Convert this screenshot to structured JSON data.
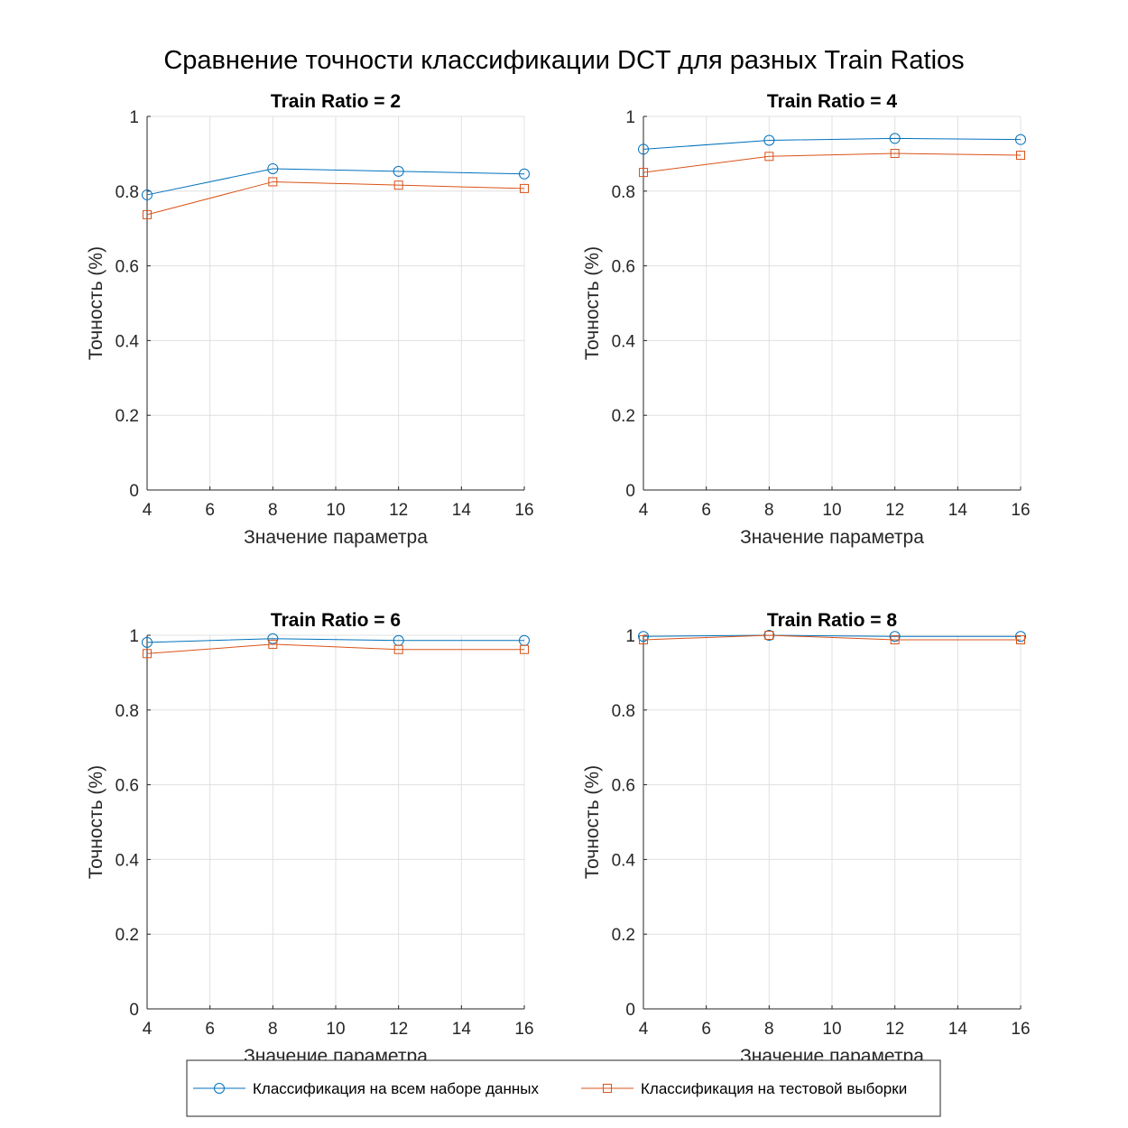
{
  "figure": {
    "title": "Сравнение точности классификации DCT для разных Train Ratios"
  },
  "colors": {
    "series_full": "#0072BD",
    "series_test": "#D95319",
    "grid": "#e0e0e0",
    "axis": "#262626"
  },
  "legend": {
    "location": "bottom-center",
    "entries": [
      {
        "label": "Классификация на всем наборе данных",
        "marker": "circle"
      },
      {
        "label": "Классификация на тестовой выборки",
        "marker": "square"
      }
    ]
  },
  "chart_data": [
    {
      "type": "line",
      "title": "Train Ratio = 2",
      "xlabel": "Значение параметра",
      "ylabel": "Точность (%)",
      "x": [
        4,
        8,
        12,
        16
      ],
      "xlim": [
        4,
        16
      ],
      "ylim": [
        0,
        1
      ],
      "xticks": [
        4,
        6,
        8,
        10,
        12,
        14,
        16
      ],
      "yticks": [
        0,
        0.2,
        0.4,
        0.6,
        0.8,
        1
      ],
      "grid": true,
      "series": [
        {
          "name": "Классификация на всем наборе данных",
          "marker": "circle",
          "values": [
            0.79,
            0.86,
            0.853,
            0.846
          ]
        },
        {
          "name": "Классификация на тестовой выборки",
          "marker": "square",
          "values": [
            0.737,
            0.825,
            0.816,
            0.807
          ]
        }
      ]
    },
    {
      "type": "line",
      "title": "Train Ratio = 4",
      "xlabel": "Значение параметра",
      "ylabel": "Точность (%)",
      "x": [
        4,
        8,
        12,
        16
      ],
      "xlim": [
        4,
        16
      ],
      "ylim": [
        0,
        1
      ],
      "xticks": [
        4,
        6,
        8,
        10,
        12,
        14,
        16
      ],
      "yticks": [
        0,
        0.2,
        0.4,
        0.6,
        0.8,
        1
      ],
      "grid": true,
      "series": [
        {
          "name": "Классификация на всем наборе данных",
          "marker": "circle",
          "values": [
            0.912,
            0.936,
            0.941,
            0.938
          ]
        },
        {
          "name": "Классификация на тестовой выборки",
          "marker": "square",
          "values": [
            0.85,
            0.893,
            0.901,
            0.896
          ]
        }
      ]
    },
    {
      "type": "line",
      "title": "Train Ratio = 6",
      "xlabel": "Значение параметра",
      "ylabel": "Точность (%)",
      "x": [
        4,
        8,
        12,
        16
      ],
      "xlim": [
        4,
        16
      ],
      "ylim": [
        0,
        1
      ],
      "xticks": [
        4,
        6,
        8,
        10,
        12,
        14,
        16
      ],
      "yticks": [
        0,
        0.2,
        0.4,
        0.6,
        0.8,
        1
      ],
      "grid": true,
      "series": [
        {
          "name": "Классификация на всем наборе данных",
          "marker": "circle",
          "values": [
            0.981,
            0.991,
            0.986,
            0.986
          ]
        },
        {
          "name": "Классификация на тестовой выборки",
          "marker": "square",
          "values": [
            0.951,
            0.976,
            0.962,
            0.962
          ]
        }
      ]
    },
    {
      "type": "line",
      "title": "Train Ratio = 8",
      "xlabel": "Значение параметра",
      "ylabel": "Точность (%)",
      "x": [
        4,
        8,
        12,
        16
      ],
      "xlim": [
        4,
        16
      ],
      "ylim": [
        0,
        1
      ],
      "xticks": [
        4,
        6,
        8,
        10,
        12,
        14,
        16
      ],
      "yticks": [
        0,
        0.2,
        0.4,
        0.6,
        0.8,
        1
      ],
      "grid": true,
      "series": [
        {
          "name": "Классификация на всем наборе данных",
          "marker": "circle",
          "values": [
            0.997,
            1.0,
            0.997,
            0.997
          ]
        },
        {
          "name": "Классификация на тестовой выборки",
          "marker": "square",
          "values": [
            0.988,
            1.0,
            0.988,
            0.988
          ]
        }
      ]
    }
  ]
}
